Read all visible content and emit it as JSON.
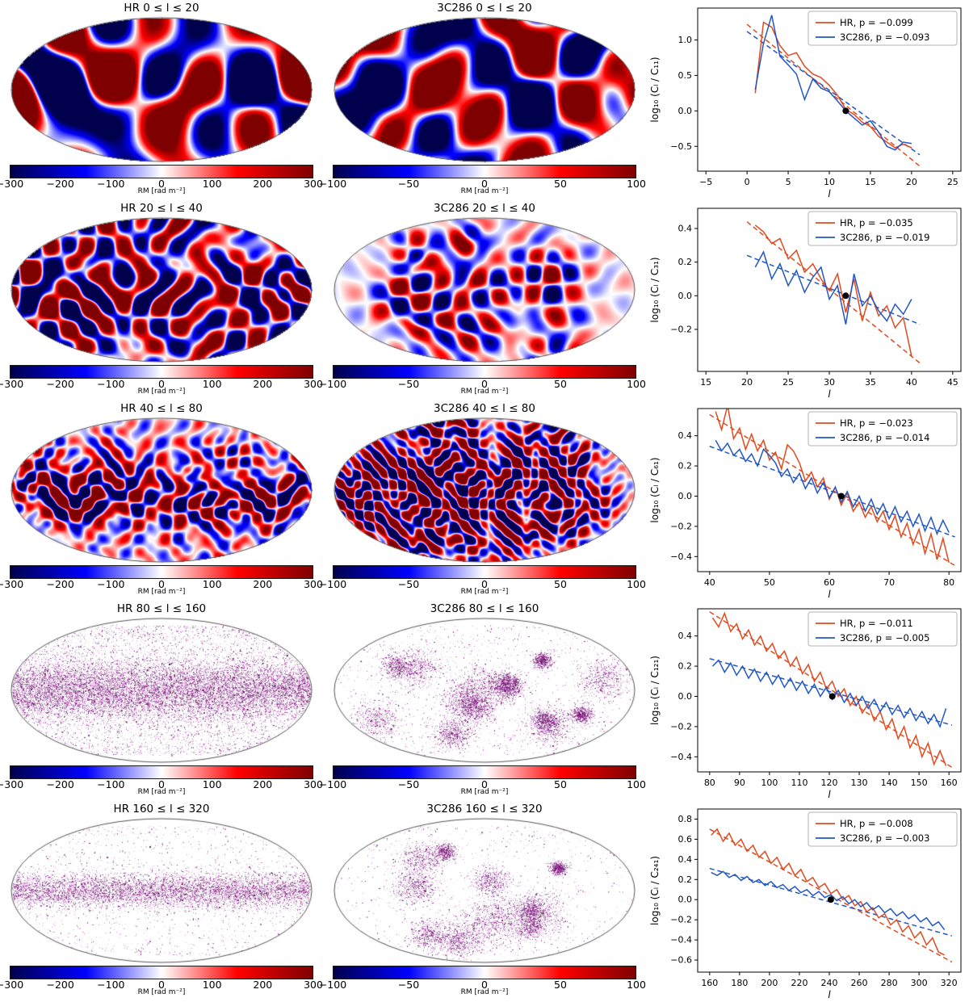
{
  "palette": {
    "hr_line": "#e2491e",
    "c_line": "#2257c4",
    "pivot_dot": "#000000",
    "colorbar_gradient": [
      "#00004d",
      "#0000ff",
      "#ffffff",
      "#ff0000",
      "#7f0000"
    ]
  },
  "rows": [
    {
      "hr": {
        "title": "HR 0 ≤ l ≤ 20",
        "cbar_ticks": [
          -300,
          -200,
          -100,
          0,
          100,
          200,
          300
        ],
        "cbar_label": "RM [rad m⁻²]",
        "map": {
          "mode": "smooth",
          "freq": 2.6,
          "amp": 2.0,
          "equator": 0.55,
          "seed": 101
        }
      },
      "c": {
        "title": "3C286 0 ≤ l ≤ 20",
        "cbar_ticks": [
          -100,
          -50,
          0,
          50,
          100
        ],
        "cbar_label": "RM [rad m⁻²]",
        "map": {
          "mode": "smooth",
          "freq": 3.0,
          "amp": 1.15,
          "equator": 0.9,
          "seed": 201
        }
      }
    },
    {
      "hr": {
        "title": "HR 20 ≤ l ≤ 40",
        "cbar_ticks": [
          -300,
          -200,
          -100,
          0,
          100,
          200,
          300
        ],
        "cbar_label": "RM [rad m⁻²]",
        "map": {
          "mode": "smooth",
          "freq": 6.5,
          "amp": 1.25,
          "equator": 0.5,
          "seed": 102
        }
      },
      "c": {
        "title": "3C286 20 ≤ l ≤ 40",
        "cbar_ticks": [
          -100,
          -50,
          0,
          50,
          100
        ],
        "cbar_label": "RM [rad m⁻²]",
        "map": {
          "mode": "smooth",
          "freq": 6.5,
          "amp": 0.95,
          "equator": 0.95,
          "seed": 202,
          "clusters": 10
        }
      }
    },
    {
      "hr": {
        "title": "HR 40 ≤ l ≤ 80",
        "cbar_ticks": [
          -300,
          -200,
          -100,
          0,
          100,
          200,
          300
        ],
        "cbar_label": "RM [rad m⁻²]",
        "map": {
          "mode": "smooth",
          "freq": 12,
          "amp": 1.15,
          "equator": 0.22,
          "seed": 103
        }
      },
      "c": {
        "title": "3C286 40 ≤ l ≤ 80",
        "cbar_ticks": [
          -100,
          -50,
          0,
          50,
          100
        ],
        "cbar_label": "RM [rad m⁻²]",
        "map": {
          "mode": "smooth",
          "freq": 12,
          "amp": 1.05,
          "equator": 1.0,
          "seed": 203,
          "clusters": 12
        }
      }
    },
    {
      "hr": {
        "title": "HR 80 ≤ l ≤ 160",
        "cbar_ticks": [
          -300,
          -200,
          -100,
          0,
          100,
          200,
          300
        ],
        "cbar_label": "RM [rad m⁻²]",
        "map": {
          "mode": "speckle",
          "density": 16000,
          "band": 0.1,
          "bg": 0.25,
          "seed": 104
        }
      },
      "c": {
        "title": "3C286 80 ≤ l ≤ 160",
        "cbar_ticks": [
          -100,
          -50,
          0,
          50,
          100
        ],
        "cbar_label": "RM [rad m⁻²]",
        "map": {
          "mode": "speckle",
          "density": 9000,
          "clusters": 14,
          "seed": 204
        }
      }
    },
    {
      "hr": {
        "title": "HR 160 ≤ l ≤ 320",
        "cbar_ticks": [
          -300,
          -200,
          -100,
          0,
          100,
          200,
          300
        ],
        "cbar_label": "RM [rad m⁻²]",
        "map": {
          "mode": "speckle",
          "density": 8000,
          "band": 0.06,
          "bg": 0.15,
          "seed": 105
        }
      },
      "c": {
        "title": "3C286 160 ≤ l ≤ 320",
        "cbar_ticks": [
          -100,
          -50,
          0,
          50,
          100
        ],
        "cbar_label": "RM [rad m⁻²]",
        "map": {
          "mode": "speckle",
          "density": 7000,
          "clusters": 12,
          "seed": 205
        }
      }
    }
  ],
  "chart_data": [
    {
      "type": "line",
      "xlabel": "l",
      "ylabel": "log₁₀ (Cₗ / C₁₁)",
      "xlim": [
        -6,
        26
      ],
      "ylim": [
        -0.85,
        1.45
      ],
      "xticks": [
        -5,
        0,
        5,
        10,
        15,
        20,
        25
      ],
      "yticks": [
        -0.5,
        0.0,
        0.5,
        1.0
      ],
      "legend_position": "upper right",
      "pivot": {
        "x": 12,
        "y": 0
      },
      "series": [
        {
          "name": "HR",
          "label": "HR, p = −0.099",
          "color": "#e2491e",
          "x0": 1,
          "dx": 1,
          "y": [
            0.25,
            1.25,
            1.18,
            0.92,
            0.78,
            0.82,
            0.63,
            0.52,
            0.47,
            0.36,
            0.22,
            0.02,
            -0.05,
            -0.16,
            -0.22,
            -0.36,
            -0.44,
            -0.52,
            -0.47,
            -0.52
          ],
          "trend": [
            [
              0,
              1.22
            ],
            [
              21,
              -0.78
            ]
          ]
        },
        {
          "name": "3C286",
          "label": "3C286, p = −0.093",
          "color": "#2257c4",
          "x0": 1,
          "dx": 1,
          "y": [
            0.3,
            0.95,
            1.35,
            0.77,
            0.65,
            0.52,
            0.16,
            0.45,
            0.32,
            0.27,
            0.14,
            0.0,
            -0.1,
            -0.2,
            -0.14,
            -0.3,
            -0.5,
            -0.55,
            -0.44,
            -0.46
          ],
          "trend": [
            [
              0,
              1.12
            ],
            [
              21,
              -0.62
            ]
          ]
        }
      ]
    },
    {
      "type": "line",
      "xlabel": "l",
      "ylabel": "log₁₀ (Cₗ / C₃₁)",
      "xlim": [
        14,
        46
      ],
      "ylim": [
        -0.45,
        0.52
      ],
      "xticks": [
        15,
        20,
        25,
        30,
        35,
        40,
        45
      ],
      "yticks": [
        -0.2,
        0.0,
        0.2,
        0.4
      ],
      "legend_position": "upper right",
      "pivot": {
        "x": 32,
        "y": 0
      },
      "series": [
        {
          "name": "HR",
          "label": "HR, p = −0.035",
          "color": "#e2491e",
          "x0": 21,
          "dx": 1,
          "y": [
            0.42,
            0.38,
            0.31,
            0.34,
            0.22,
            0.27,
            0.14,
            0.19,
            0.1,
            0.03,
            0.13,
            -0.1,
            0.1,
            -0.15,
            0.02,
            -0.12,
            -0.06,
            -0.19,
            -0.13,
            -0.36
          ],
          "trend": [
            [
              20,
              0.44
            ],
            [
              41,
              -0.4
            ]
          ]
        },
        {
          "name": "3C286",
          "label": "3C286, p = −0.019",
          "color": "#2257c4",
          "x0": 21,
          "dx": 1,
          "y": [
            0.17,
            0.26,
            0.1,
            0.19,
            0.06,
            0.15,
            0.02,
            0.11,
            0.17,
            -0.02,
            0.06,
            -0.17,
            0.13,
            -0.06,
            0.0,
            -0.09,
            -0.15,
            -0.05,
            -0.11,
            -0.02
          ],
          "trend": [
            [
              20,
              0.24
            ],
            [
              41,
              -0.17
            ]
          ]
        }
      ]
    },
    {
      "type": "line",
      "xlabel": "l",
      "ylabel": "log₁₀ (Cₗ / C₆₁)",
      "xlim": [
        38,
        82
      ],
      "ylim": [
        -0.5,
        0.58
      ],
      "xticks": [
        40,
        50,
        60,
        70,
        80
      ],
      "yticks": [
        -0.4,
        -0.2,
        0.0,
        0.2,
        0.4
      ],
      "legend_position": "upper right",
      "pivot": {
        "x": 62,
        "y": 0
      },
      "series": [
        {
          "name": "HR",
          "label": "HR, p = −0.023",
          "color": "#e2491e",
          "x0": 41,
          "dx": 1,
          "y": [
            0.56,
            0.44,
            0.6,
            0.38,
            0.45,
            0.31,
            0.41,
            0.3,
            0.37,
            0.24,
            0.29,
            0.18,
            0.34,
            0.3,
            0.22,
            0.1,
            0.16,
            0.06,
            0.12,
            -0.02,
            0.06,
            -0.06,
            0.02,
            -0.1,
            -0.04,
            -0.14,
            -0.07,
            -0.17,
            -0.1,
            -0.22,
            -0.13,
            -0.27,
            -0.18,
            -0.32,
            -0.22,
            -0.38,
            -0.25,
            -0.42,
            -0.28,
            -0.44
          ],
          "trend": [
            [
              40,
              0.54
            ],
            [
              81,
              -0.46
            ]
          ]
        },
        {
          "name": "3C286",
          "label": "3C286, p = −0.014",
          "color": "#2257c4",
          "x0": 41,
          "dx": 1,
          "y": [
            0.37,
            0.3,
            0.35,
            0.27,
            0.31,
            0.23,
            0.28,
            0.2,
            0.31,
            0.27,
            0.22,
            0.13,
            0.18,
            0.09,
            0.15,
            0.05,
            0.12,
            0.02,
            0.09,
            -0.01,
            0.06,
            -0.04,
            0.03,
            -0.07,
            0.0,
            -0.1,
            -0.02,
            -0.12,
            -0.05,
            -0.15,
            -0.07,
            -0.17,
            -0.1,
            -0.2,
            -0.12,
            -0.23,
            -0.14,
            -0.25,
            -0.16,
            -0.24
          ],
          "trend": [
            [
              40,
              0.33
            ],
            [
              81,
              -0.27
            ]
          ]
        }
      ]
    },
    {
      "type": "line",
      "xlabel": "l",
      "ylabel": "log₁₀ (Cₗ / C₁₂₁)",
      "xlim": [
        76,
        164
      ],
      "ylim": [
        -0.5,
        0.58
      ],
      "xticks": [
        80,
        90,
        100,
        110,
        120,
        130,
        140,
        150,
        160
      ],
      "yticks": [
        -0.4,
        -0.2,
        0.0,
        0.2,
        0.4
      ],
      "legend_position": "upper right",
      "pivot": {
        "x": 121,
        "y": 0
      },
      "series": [
        {
          "name": "HR",
          "label": "HR, p = −0.011",
          "color": "#e2491e",
          "x0": 81,
          "dx": 2,
          "y": [
            0.52,
            0.46,
            0.55,
            0.43,
            0.48,
            0.38,
            0.44,
            0.34,
            0.4,
            0.3,
            0.35,
            0.25,
            0.3,
            0.2,
            0.26,
            0.15,
            0.21,
            0.1,
            0.16,
            0.05,
            0.1,
            0.0,
            0.05,
            -0.06,
            0.0,
            -0.11,
            -0.05,
            -0.16,
            -0.1,
            -0.22,
            -0.15,
            -0.28,
            -0.2,
            -0.34,
            -0.26,
            -0.4,
            -0.31,
            -0.45,
            -0.36,
            -0.46
          ],
          "trend": [
            [
              80,
              0.56
            ],
            [
              161,
              -0.47
            ]
          ]
        },
        {
          "name": "3C286",
          "label": "3C286, p = −0.005",
          "color": "#2257c4",
          "x0": 81,
          "dx": 2,
          "y": [
            0.2,
            0.24,
            0.16,
            0.22,
            0.14,
            0.2,
            0.12,
            0.18,
            0.1,
            0.16,
            0.08,
            0.14,
            0.06,
            0.12,
            0.04,
            0.1,
            0.02,
            0.08,
            0.0,
            0.06,
            -0.02,
            0.04,
            -0.04,
            0.02,
            -0.06,
            0.0,
            -0.08,
            -0.02,
            -0.1,
            -0.04,
            -0.12,
            -0.06,
            -0.14,
            -0.08,
            -0.16,
            -0.1,
            -0.18,
            -0.12,
            -0.2,
            -0.08
          ],
          "trend": [
            [
              80,
              0.25
            ],
            [
              161,
              -0.19
            ]
          ]
        }
      ]
    },
    {
      "type": "line",
      "xlabel": "l",
      "ylabel": "log₁₀ (Cₗ / C₂₄₁)",
      "xlim": [
        152,
        328
      ],
      "ylim": [
        -0.72,
        0.9
      ],
      "xticks": [
        160,
        180,
        200,
        220,
        240,
        260,
        280,
        300,
        320
      ],
      "yticks": [
        -0.6,
        -0.4,
        -0.2,
        0.0,
        0.2,
        0.4,
        0.6,
        0.8
      ],
      "legend_position": "upper right",
      "pivot": {
        "x": 241,
        "y": 0
      },
      "series": [
        {
          "name": "HR",
          "label": "HR, p = −0.008",
          "color": "#e2491e",
          "x0": 161,
          "dx": 4,
          "y": [
            0.64,
            0.7,
            0.58,
            0.66,
            0.54,
            0.6,
            0.48,
            0.54,
            0.42,
            0.48,
            0.36,
            0.42,
            0.3,
            0.36,
            0.24,
            0.3,
            0.18,
            0.22,
            0.12,
            0.16,
            0.06,
            0.1,
            0.0,
            0.04,
            -0.06,
            -0.02,
            -0.12,
            -0.08,
            -0.18,
            -0.14,
            -0.25,
            -0.2,
            -0.32,
            -0.26,
            -0.38,
            -0.32,
            -0.45,
            -0.38,
            -0.52,
            -0.55
          ],
          "trend": [
            [
              160,
              0.7
            ],
            [
              322,
              -0.62
            ]
          ]
        },
        {
          "name": "3C286",
          "label": "3C286, p = −0.003",
          "color": "#2257c4",
          "x0": 161,
          "dx": 4,
          "y": [
            0.27,
            0.24,
            0.28,
            0.22,
            0.25,
            0.19,
            0.23,
            0.17,
            0.2,
            0.14,
            0.18,
            0.12,
            0.15,
            0.09,
            0.13,
            0.07,
            0.1,
            0.04,
            0.08,
            0.02,
            0.05,
            -0.01,
            0.03,
            -0.04,
            0.0,
            -0.07,
            -0.03,
            -0.1,
            -0.06,
            -0.13,
            -0.09,
            -0.16,
            -0.12,
            -0.19,
            -0.15,
            -0.22,
            -0.18,
            -0.26,
            -0.22,
            -0.3
          ],
          "trend": [
            [
              160,
              0.31
            ],
            [
              322,
              -0.36
            ]
          ]
        }
      ]
    }
  ]
}
